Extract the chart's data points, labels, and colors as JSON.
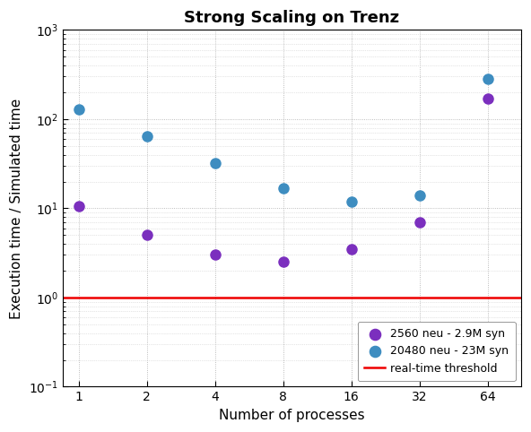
{
  "title": "Strong Scaling on Trenz",
  "xlabel": "Number of processes",
  "ylabel": "Execution time / Simulated time",
  "x_values": [
    1,
    2,
    4,
    8,
    16,
    32,
    64
  ],
  "purple_y": [
    10.5,
    5.0,
    3.0,
    2.5,
    3.5,
    7.0,
    170.0
  ],
  "blue_y": [
    130.0,
    65.0,
    32.0,
    17.0,
    12.0,
    14.0,
    280.0
  ],
  "purple_color": "#7B2FBE",
  "blue_color": "#3E8DC0",
  "threshold_y": 1.0,
  "threshold_color": "#EE0000",
  "ylim": [
    0.1,
    1000
  ],
  "xlim": [
    0.85,
    90
  ],
  "legend_labels": [
    "2560 neu - 2.9M syn",
    "20480 neu - 23M syn",
    "real-time threshold"
  ],
  "marker_size": 8,
  "title_fontsize": 13,
  "axis_label_fontsize": 11,
  "tick_label_fontsize": 10
}
